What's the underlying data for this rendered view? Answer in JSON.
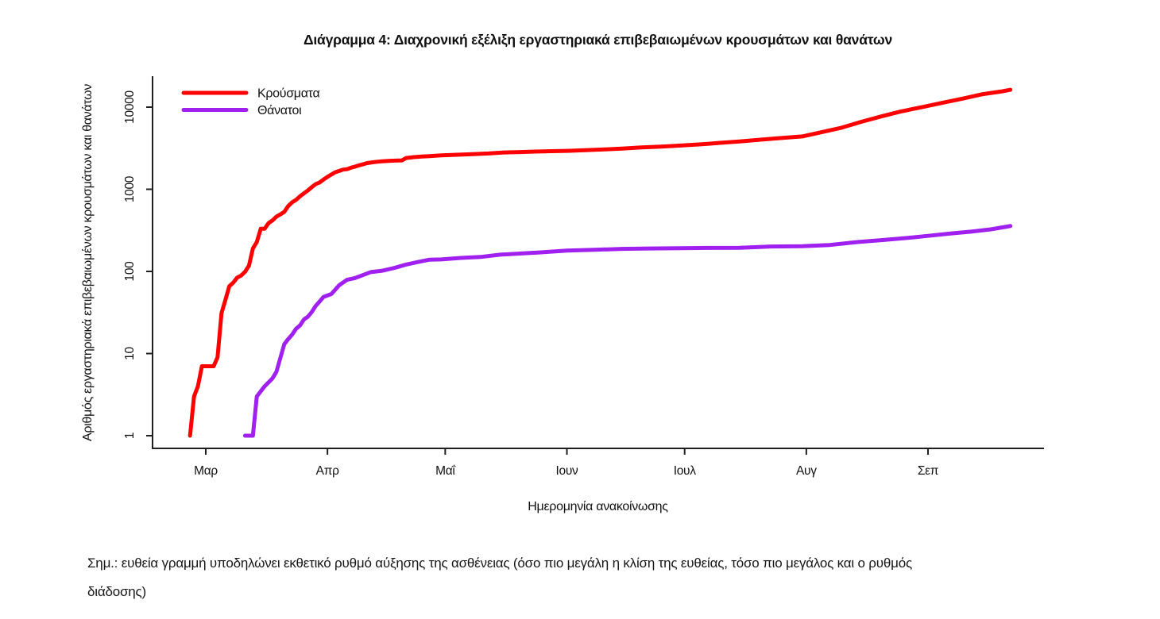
{
  "title": "Διάγραμμα 4: Διαχρονική εξέλιξη εργαστηριακά επιβεβαιωμένων κρουσμάτων και θανάτων",
  "footnote": {
    "lines": [
      "Σημ.: ευθεία γραμμή υποδηλώνει εκθετικό ρυθμό αύξησης της ασθένειας (όσο πιο μεγάλη η κλίση της ευθείας, τόσο πιο μεγάλος και ο ρυθμός",
      "διάδοσης)"
    ]
  },
  "chart_data": {
    "type": "line",
    "title": "Διάγραμμα 4: Διαχρονική εξέλιξη εργαστηριακά επιβεβαιωμένων κρουσμάτων και θανάτων",
    "xlabel": "Ημερομηνία ανακοίνωσης",
    "ylabel": "Αριθμός εργαστηριακά επιβεβαιωμένων κρουσμάτων και θανάτων",
    "y_scale": "log10",
    "ylim": [
      1,
      10000
    ],
    "grid": false,
    "legend_position": "top-left",
    "y_ticks": [
      {
        "value": 1,
        "label": "1"
      },
      {
        "value": 10,
        "label": "10"
      },
      {
        "value": 100,
        "label": "100"
      },
      {
        "value": 1000,
        "label": "1000"
      },
      {
        "value": 10000,
        "label": "10000"
      }
    ],
    "x_ticks": [
      {
        "date": "2020-03-01",
        "label": "Μαρ"
      },
      {
        "date": "2020-04-01",
        "label": "Απρ"
      },
      {
        "date": "2020-05-01",
        "label": "Μαΐ"
      },
      {
        "date": "2020-06-01",
        "label": "Ιουν"
      },
      {
        "date": "2020-07-01",
        "label": "Ιουλ"
      },
      {
        "date": "2020-08-01",
        "label": "Αυγ"
      },
      {
        "date": "2020-09-01",
        "label": "Σεπ"
      }
    ],
    "legend": [
      {
        "name": "Κρούσματα",
        "color": "#ff0000"
      },
      {
        "name": "Θάνατοι",
        "color": "#a020f0"
      }
    ],
    "series": [
      {
        "name": "Κρούσματα",
        "color": "#ff0000",
        "points": [
          [
            "2020-02-26",
            1
          ],
          [
            "2020-02-27",
            3
          ],
          [
            "2020-02-28",
            4
          ],
          [
            "2020-02-29",
            7
          ],
          [
            "2020-03-03",
            7
          ],
          [
            "2020-03-04",
            9
          ],
          [
            "2020-03-05",
            31
          ],
          [
            "2020-03-06",
            45
          ],
          [
            "2020-03-07",
            66
          ],
          [
            "2020-03-08",
            73
          ],
          [
            "2020-03-09",
            84
          ],
          [
            "2020-03-10",
            89
          ],
          [
            "2020-03-11",
            99
          ],
          [
            "2020-03-12",
            117
          ],
          [
            "2020-03-13",
            190
          ],
          [
            "2020-03-14",
            228
          ],
          [
            "2020-03-15",
            331
          ],
          [
            "2020-03-16",
            331
          ],
          [
            "2020-03-17",
            387
          ],
          [
            "2020-03-18",
            418
          ],
          [
            "2020-03-19",
            464
          ],
          [
            "2020-03-20",
            495
          ],
          [
            "2020-03-21",
            530
          ],
          [
            "2020-03-22",
            624
          ],
          [
            "2020-03-23",
            695
          ],
          [
            "2020-03-24",
            743
          ],
          [
            "2020-03-25",
            821
          ],
          [
            "2020-03-26",
            892
          ],
          [
            "2020-03-27",
            966
          ],
          [
            "2020-03-28",
            1061
          ],
          [
            "2020-03-29",
            1156
          ],
          [
            "2020-03-30",
            1212
          ],
          [
            "2020-03-31",
            1314
          ],
          [
            "2020-04-01",
            1415
          ],
          [
            "2020-04-02",
            1514
          ],
          [
            "2020-04-03",
            1613
          ],
          [
            "2020-04-04",
            1673
          ],
          [
            "2020-04-05",
            1735
          ],
          [
            "2020-04-06",
            1755
          ],
          [
            "2020-04-07",
            1832
          ],
          [
            "2020-04-08",
            1884
          ],
          [
            "2020-04-09",
            1955
          ],
          [
            "2020-04-10",
            2011
          ],
          [
            "2020-04-11",
            2081
          ],
          [
            "2020-04-12",
            2114
          ],
          [
            "2020-04-13",
            2145
          ],
          [
            "2020-04-15",
            2192
          ],
          [
            "2020-04-17",
            2224
          ],
          [
            "2020-04-19",
            2235
          ],
          [
            "2020-04-20",
            2245
          ],
          [
            "2020-04-21",
            2401
          ],
          [
            "2020-04-23",
            2463
          ],
          [
            "2020-04-25",
            2506
          ],
          [
            "2020-04-27",
            2534
          ],
          [
            "2020-04-30",
            2591
          ],
          [
            "2020-05-04",
            2632
          ],
          [
            "2020-05-08",
            2678
          ],
          [
            "2020-05-12",
            2726
          ],
          [
            "2020-05-16",
            2810
          ],
          [
            "2020-05-20",
            2840
          ],
          [
            "2020-05-24",
            2876
          ],
          [
            "2020-05-28",
            2906
          ],
          [
            "2020-06-01",
            2937
          ],
          [
            "2020-06-05",
            2980
          ],
          [
            "2020-06-10",
            3049
          ],
          [
            "2020-06-15",
            3121
          ],
          [
            "2020-06-20",
            3227
          ],
          [
            "2020-06-25",
            3310
          ],
          [
            "2020-06-30",
            3409
          ],
          [
            "2020-07-05",
            3519
          ],
          [
            "2020-07-10",
            3672
          ],
          [
            "2020-07-15",
            3826
          ],
          [
            "2020-07-20",
            4007
          ],
          [
            "2020-07-25",
            4193
          ],
          [
            "2020-07-31",
            4401
          ],
          [
            "2020-08-05",
            4974
          ],
          [
            "2020-08-10",
            5623
          ],
          [
            "2020-08-15",
            6632
          ],
          [
            "2020-08-20",
            7684
          ],
          [
            "2020-08-25",
            8819
          ],
          [
            "2020-08-31",
            10134
          ],
          [
            "2020-09-05",
            11386
          ],
          [
            "2020-09-10",
            12734
          ],
          [
            "2020-09-15",
            14400
          ],
          [
            "2020-09-20",
            15595
          ],
          [
            "2020-09-22",
            16286
          ]
        ]
      },
      {
        "name": "Θάνατοι",
        "color": "#a020f0",
        "points": [
          [
            "2020-03-11",
            1
          ],
          [
            "2020-03-13",
            1
          ],
          [
            "2020-03-14",
            3
          ],
          [
            "2020-03-16",
            4
          ],
          [
            "2020-03-18",
            5
          ],
          [
            "2020-03-19",
            6
          ],
          [
            "2020-03-21",
            13
          ],
          [
            "2020-03-22",
            15
          ],
          [
            "2020-03-23",
            17
          ],
          [
            "2020-03-24",
            20
          ],
          [
            "2020-03-25",
            22
          ],
          [
            "2020-03-26",
            26
          ],
          [
            "2020-03-27",
            28
          ],
          [
            "2020-03-28",
            32
          ],
          [
            "2020-03-29",
            38
          ],
          [
            "2020-03-30",
            43
          ],
          [
            "2020-03-31",
            49
          ],
          [
            "2020-04-02",
            53
          ],
          [
            "2020-04-04",
            68
          ],
          [
            "2020-04-06",
            79
          ],
          [
            "2020-04-08",
            83
          ],
          [
            "2020-04-10",
            90
          ],
          [
            "2020-04-12",
            98
          ],
          [
            "2020-04-15",
            102
          ],
          [
            "2020-04-18",
            110
          ],
          [
            "2020-04-21",
            121
          ],
          [
            "2020-04-24",
            130
          ],
          [
            "2020-04-27",
            139
          ],
          [
            "2020-04-30",
            140
          ],
          [
            "2020-05-05",
            146
          ],
          [
            "2020-05-10",
            150
          ],
          [
            "2020-05-15",
            160
          ],
          [
            "2020-05-20",
            165
          ],
          [
            "2020-05-25",
            170
          ],
          [
            "2020-06-01",
            179
          ],
          [
            "2020-06-08",
            183
          ],
          [
            "2020-06-15",
            188
          ],
          [
            "2020-06-22",
            190
          ],
          [
            "2020-06-30",
            192
          ],
          [
            "2020-07-07",
            193
          ],
          [
            "2020-07-15",
            194
          ],
          [
            "2020-07-23",
            201
          ],
          [
            "2020-07-31",
            203
          ],
          [
            "2020-08-07",
            210
          ],
          [
            "2020-08-14",
            228
          ],
          [
            "2020-08-21",
            242
          ],
          [
            "2020-08-28",
            259
          ],
          [
            "2020-09-01",
            271
          ],
          [
            "2020-09-07",
            290
          ],
          [
            "2020-09-12",
            305
          ],
          [
            "2020-09-17",
            325
          ],
          [
            "2020-09-22",
            357
          ]
        ]
      }
    ]
  }
}
